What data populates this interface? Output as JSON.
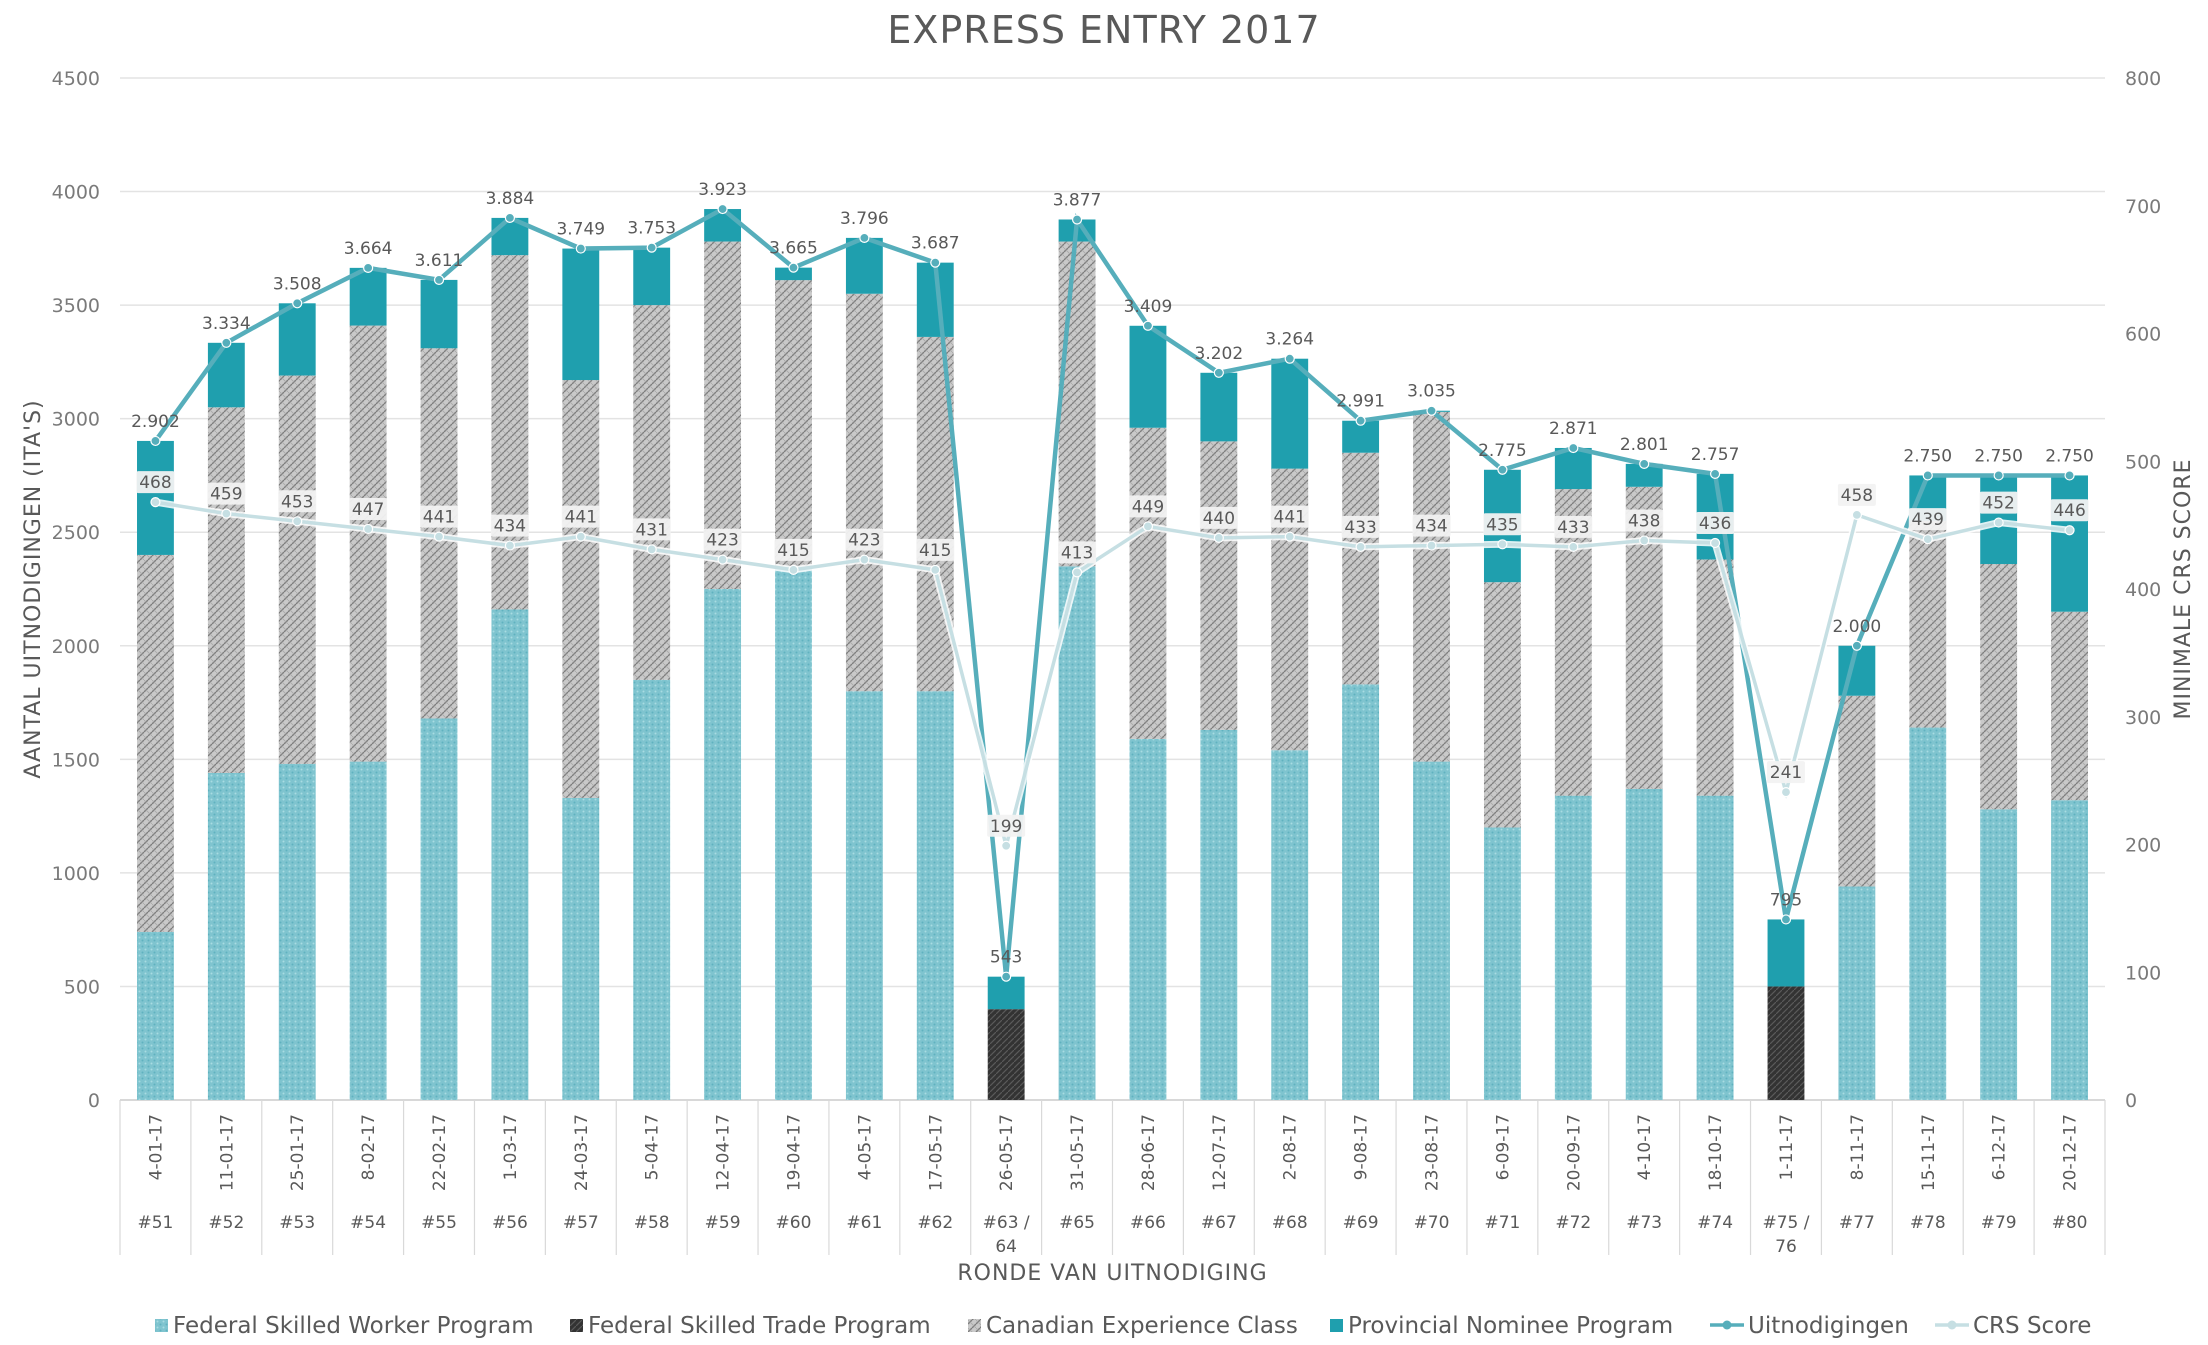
{
  "chart_data": {
    "type": "bar",
    "stacked": true,
    "title": "EXPRESS ENTRY 2017",
    "xlabel": "RONDE VAN UITNODIGING",
    "ylabel": "AANTAL UITNODIGINGEN (ITA'S)",
    "y2label": "MINIMALE CRS SCORE",
    "ylim": [
      0,
      4500
    ],
    "y2lim": [
      0,
      800
    ],
    "yticks": [
      "0",
      "500",
      "1000",
      "1500",
      "2000",
      "2500",
      "3000",
      "3500",
      "4000",
      "4500"
    ],
    "y2ticks": [
      "0",
      "100",
      "200",
      "300",
      "400",
      "500",
      "600",
      "700",
      "800"
    ],
    "grid": true,
    "legend_position": "bottom",
    "categories_date": [
      "4-01-17",
      "11-01-17",
      "25-01-17",
      "8-02-17",
      "22-02-17",
      "1-03-17",
      "24-03-17",
      "5-04-17",
      "12-04-17",
      "19-04-17",
      "4-05-17",
      "17-05-17",
      "26-05-17",
      "31-05-17",
      "28-06-17",
      "12-07-17",
      "2-08-17",
      "9-08-17",
      "23-08-17",
      "6-09-17",
      "20-09-17",
      "4-10-17",
      "18-10-17",
      "1-11-17",
      "8-11-17",
      "15-11-17",
      "6-12-17",
      "20-12-17"
    ],
    "categories_round": [
      "#51",
      "#52",
      "#53",
      "#54",
      "#55",
      "#56",
      "#57",
      "#58",
      "#59",
      "#60",
      "#61",
      "#62",
      "#63 / 64",
      "#65",
      "#66",
      "#67",
      "#68",
      "#69",
      "#70",
      "#71",
      "#72",
      "#73",
      "#74",
      "#75 / 76",
      "#77",
      "#78",
      "#79",
      "#80"
    ],
    "series": [
      {
        "name": "Federal Skilled Worker Program",
        "kind": "bar",
        "color": "#7fc4cf",
        "pattern": "dots",
        "values": [
          740,
          1440,
          1480,
          1490,
          1680,
          2160,
          1330,
          1850,
          2250,
          2350,
          1800,
          1800,
          0,
          2350,
          1590,
          1630,
          1540,
          1830,
          1490,
          1200,
          1340,
          1370,
          1340,
          0,
          940,
          1640,
          1280,
          1320
        ]
      },
      {
        "name": "Federal Skilled Trade Program",
        "kind": "bar",
        "color": "#3a3a3a",
        "pattern": "dark",
        "values": [
          0,
          0,
          0,
          0,
          0,
          0,
          0,
          0,
          0,
          0,
          0,
          0,
          400,
          0,
          0,
          0,
          0,
          0,
          0,
          0,
          0,
          0,
          0,
          500,
          0,
          0,
          0,
          0
        ]
      },
      {
        "name": "Canadian Experience Class",
        "kind": "bar",
        "color": "#b9b9b9",
        "pattern": "weave",
        "values": [
          1660,
          1610,
          1710,
          1920,
          1630,
          1560,
          1840,
          1650,
          1530,
          1260,
          1750,
          1560,
          0,
          1430,
          1370,
          1270,
          1240,
          1020,
          1540,
          1080,
          1350,
          1330,
          1040,
          0,
          840,
          910,
          1080,
          830
        ]
      },
      {
        "name": "Provincial Nominee Program",
        "kind": "bar",
        "color": "#1f9fae",
        "pattern": "solid",
        "values": [
          502,
          284,
          318,
          254,
          301,
          164,
          579,
          253,
          143,
          55,
          246,
          327,
          143,
          97,
          449,
          302,
          484,
          141,
          5,
          495,
          181,
          101,
          377,
          295,
          220,
          200,
          390,
          600
        ]
      },
      {
        "name": "Uitnodigingen",
        "kind": "line",
        "axis": "left",
        "color": "#56aebb",
        "values": [
          2902,
          3334,
          3508,
          3664,
          3611,
          3884,
          3749,
          3753,
          3923,
          3665,
          3796,
          3687,
          543,
          3877,
          3409,
          3202,
          3264,
          2991,
          3035,
          2775,
          2871,
          2801,
          2757,
          795,
          2000,
          2750,
          2750,
          2750
        ],
        "labels": [
          "2.902",
          "3.334",
          "3.508",
          "3.664",
          "3.611",
          "3.884",
          "3.749",
          "3.753",
          "3.923",
          "3.665",
          "3.796",
          "3.687",
          "543",
          "3.877",
          "3.409",
          "3.202",
          "3.264",
          "2.991",
          "3.035",
          "2.775",
          "2.871",
          "2.801",
          "2.757",
          "795",
          "2.000",
          "2.750",
          "2.750",
          "2.750"
        ]
      },
      {
        "name": "CRS Score",
        "kind": "line",
        "axis": "right",
        "color": "#c6dfe3",
        "values": [
          468,
          459,
          453,
          447,
          441,
          434,
          441,
          431,
          423,
          415,
          423,
          415,
          199,
          413,
          449,
          440,
          441,
          433,
          434,
          435,
          433,
          438,
          436,
          241,
          458,
          439,
          452,
          446
        ],
        "labels": [
          "468",
          "459",
          "453",
          "447",
          "441",
          "434",
          "441",
          "431",
          "423",
          "415",
          "423",
          "415",
          "199",
          "413",
          "449",
          "440",
          "441",
          "433",
          "434",
          "435",
          "433",
          "438",
          "436",
          "241",
          "458",
          "439",
          "452",
          "446"
        ]
      }
    ]
  }
}
